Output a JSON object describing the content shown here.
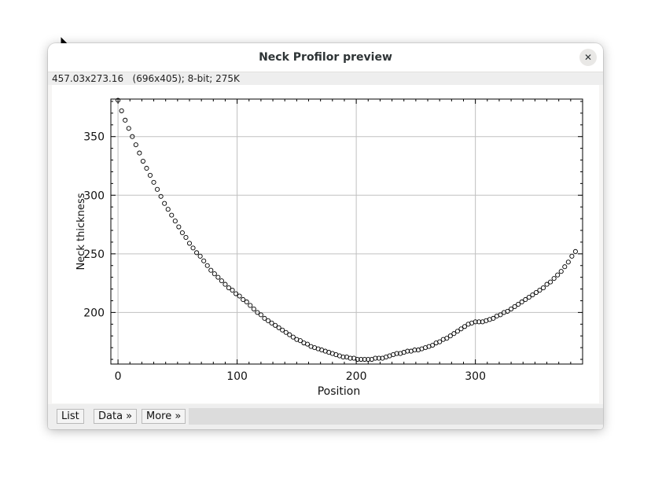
{
  "window": {
    "title": "Neck Profilor preview",
    "close_icon": "close-icon"
  },
  "info": {
    "text": "457.03x273.16   (696x405); 8-bit; 275K"
  },
  "buttons": {
    "list": "List",
    "data": "Data »",
    "more": "More »"
  },
  "colors": {
    "grid": "#c0c0c0",
    "marker": "#000000"
  },
  "chart_data": {
    "type": "scatter",
    "title": "",
    "xlabel": "Position",
    "ylabel": "Neck thickness",
    "xlim": [
      -6,
      390
    ],
    "ylim": [
      156,
      382
    ],
    "xticks": [
      0,
      100,
      200,
      300
    ],
    "yticks": [
      200,
      250,
      300,
      350
    ],
    "grid": true,
    "marker": "open-circle",
    "series": [
      {
        "x": [
          0,
          3,
          6,
          9,
          12,
          15,
          18,
          21,
          24,
          27,
          30,
          33,
          36,
          39,
          42,
          45,
          48,
          51,
          54,
          57,
          60,
          63,
          66,
          69,
          72,
          75,
          78,
          81,
          84,
          87,
          90,
          93,
          96,
          99,
          102,
          105,
          108,
          111,
          114,
          117,
          120,
          123,
          126,
          129,
          132,
          135,
          138,
          141,
          144,
          147,
          150,
          153,
          156,
          159,
          162,
          165,
          168,
          171,
          174,
          177,
          180,
          183,
          186,
          189,
          192,
          195,
          198,
          201,
          204,
          207,
          210,
          213,
          216,
          219,
          222,
          225,
          228,
          231,
          234,
          237,
          240,
          243,
          246,
          249,
          252,
          255,
          258,
          261,
          264,
          267,
          270,
          273,
          276,
          279,
          282,
          285,
          288,
          291,
          294,
          297,
          300,
          303,
          306,
          309,
          312,
          315,
          318,
          321,
          324,
          327,
          330,
          333,
          336,
          339,
          342,
          345,
          348,
          351,
          354,
          357,
          360,
          363,
          366,
          369,
          372,
          375,
          378,
          381,
          384
        ],
        "y": [
          381,
          372,
          364,
          357,
          350,
          343,
          336,
          329,
          323,
          317,
          311,
          305,
          299,
          293,
          288,
          283,
          278,
          273,
          268,
          264,
          259,
          255,
          251,
          248,
          244,
          240,
          236,
          233,
          230,
          227,
          224,
          221,
          219,
          216,
          214,
          211,
          209,
          206,
          203,
          200,
          198,
          195,
          193,
          191,
          189,
          187,
          185,
          183,
          181,
          179,
          177,
          176,
          174,
          173,
          171,
          170,
          169,
          168,
          167,
          166,
          165,
          164,
          163,
          162,
          162,
          161,
          161,
          160,
          160,
          160,
          160,
          160,
          161,
          161,
          161,
          162,
          163,
          164,
          165,
          165,
          166,
          167,
          167,
          168,
          168,
          169,
          170,
          171,
          172,
          174,
          175,
          177,
          178,
          180,
          182,
          184,
          186,
          188,
          190,
          191,
          192,
          192,
          192,
          193,
          194,
          195,
          197,
          198,
          200,
          201,
          203,
          205,
          207,
          209,
          211,
          213,
          215,
          217,
          219,
          221,
          224,
          226,
          229,
          232,
          235,
          239,
          243,
          248,
          252
        ]
      }
    ]
  }
}
